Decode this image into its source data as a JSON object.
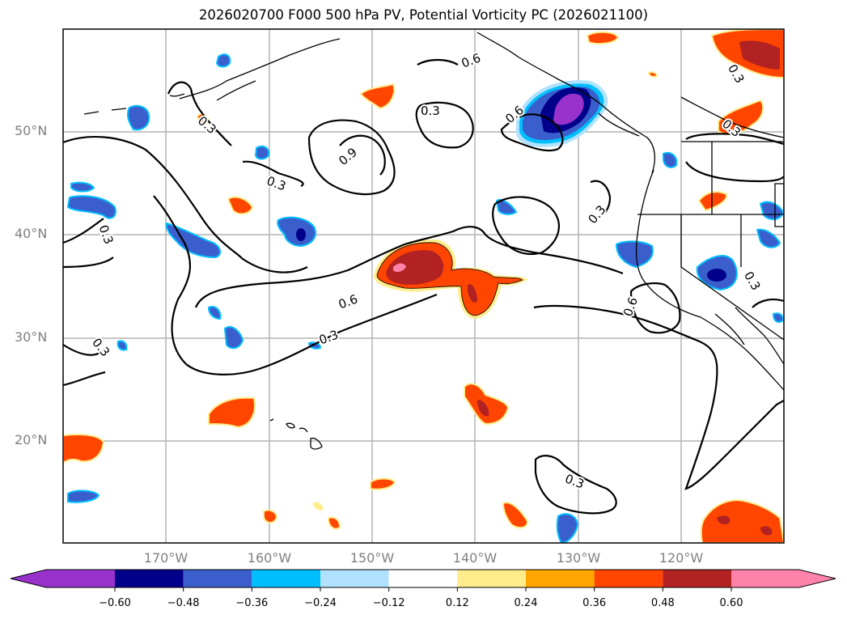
{
  "title": "2026020700 F000 500 hPa PV, Potential Vorticity PC (2026021100)",
  "chart_data": {
    "type": "map-contour",
    "title": "2026020700 F000 500 hPa PV, Potential Vorticity PC (2026021100)",
    "lon_range": [
      -180,
      -110
    ],
    "lat_range": [
      10,
      60
    ],
    "x_ticks": [
      {
        "lon": -170,
        "label": "170°W"
      },
      {
        "lon": -160,
        "label": "160°W"
      },
      {
        "lon": -150,
        "label": "150°W"
      },
      {
        "lon": -140,
        "label": "140°W"
      },
      {
        "lon": -130,
        "label": "130°W"
      },
      {
        "lon": -120,
        "label": "120°W"
      }
    ],
    "y_ticks": [
      {
        "lat": 50,
        "label": "50°N"
      },
      {
        "lat": 40,
        "label": "40°N"
      },
      {
        "lat": 30,
        "label": "30°N"
      },
      {
        "lat": 20,
        "label": "20°N"
      }
    ],
    "grid": true,
    "contour_labels": [
      "0.6",
      "0.3",
      "0.6",
      "0.3",
      "0.9",
      "0.3",
      "0.3",
      "0.3",
      "0.6",
      "0.3",
      "0.3",
      "0.6",
      "0.3",
      "0.3",
      "0.3",
      "0.3"
    ],
    "colorbar": {
      "levels": [
        -0.6,
        -0.48,
        -0.36,
        -0.24,
        -0.12,
        0.12,
        0.24,
        0.36,
        0.48,
        0.6
      ],
      "tick_labels": [
        "−0.60",
        "−0.48",
        "−0.36",
        "−0.24",
        "−0.12",
        "0.12",
        "0.24",
        "0.36",
        "0.48",
        "0.60"
      ],
      "colors": [
        "#9932cc",
        "#00008b",
        "#3a5fcd",
        "#00bfff",
        "#b0e2ff",
        "#ffffff",
        "#ffec8b",
        "#ffa500",
        "#ff4500",
        "#b22222",
        "#ff82ab"
      ],
      "extend": "both",
      "orientation": "horizontal"
    }
  }
}
